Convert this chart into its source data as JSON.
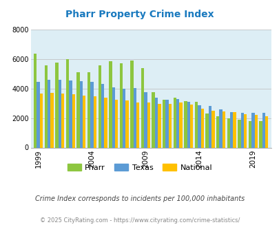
{
  "title": "Pharr Property Crime Index",
  "title_color": "#1a7abf",
  "years": [
    1999,
    2000,
    2001,
    2002,
    2003,
    2004,
    2005,
    2006,
    2007,
    2008,
    2009,
    2010,
    2011,
    2012,
    2013,
    2014,
    2015,
    2016,
    2017,
    2018,
    2019,
    2020
  ],
  "pharr": [
    6350,
    5550,
    5750,
    6000,
    5100,
    5100,
    5550,
    5850,
    5700,
    5900,
    5400,
    3750,
    3250,
    3400,
    3150,
    3100,
    2300,
    2100,
    2000,
    1900,
    1800,
    1800
  ],
  "texas": [
    4450,
    4600,
    4600,
    4550,
    4500,
    4450,
    4300,
    4100,
    4000,
    4050,
    3750,
    3400,
    3250,
    3300,
    3100,
    2850,
    2800,
    2600,
    2400,
    2350,
    2350,
    2350
  ],
  "national": [
    3650,
    3700,
    3650,
    3600,
    3500,
    3450,
    3400,
    3250,
    3200,
    3050,
    3050,
    2950,
    2950,
    3050,
    2900,
    2650,
    2500,
    2450,
    2400,
    2250,
    2200,
    2100
  ],
  "pharr_color": "#8dc63f",
  "texas_color": "#5b9bd5",
  "national_color": "#ffc000",
  "bg_color": "#ddeef5",
  "ylim": [
    0,
    8000
  ],
  "yticks": [
    0,
    2000,
    4000,
    6000,
    8000
  ],
  "xlabel_ticks": [
    1999,
    2004,
    2009,
    2014,
    2019
  ],
  "note": "Crime Index corresponds to incidents per 100,000 inhabitants",
  "footer": "© 2025 CityRating.com - https://www.cityrating.com/crime-statistics/",
  "note_color": "#444444",
  "footer_color": "#888888",
  "grid_color": "#bbbbbb"
}
